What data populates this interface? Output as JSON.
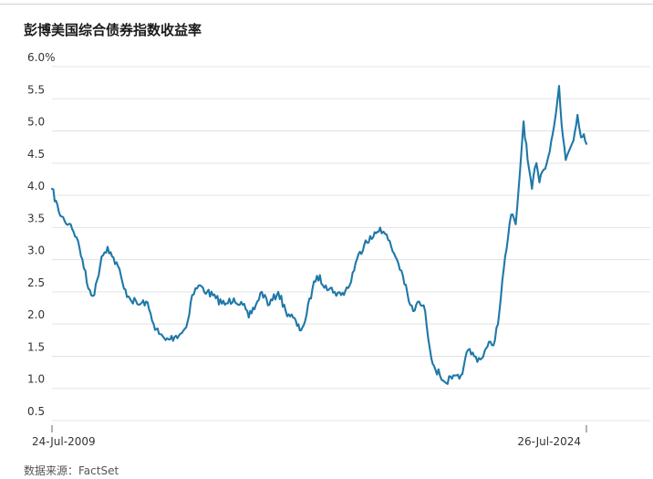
{
  "page": {
    "title": "彭博美国综合债券指数收益率",
    "source": "数据来源：FactSet"
  },
  "colors": {
    "line": "#1f78a8",
    "gridline": "#e3e3e3",
    "axis_text": "#333333"
  },
  "chart_data": {
    "type": "line",
    "title": "彭博美国综合债券指数收益率",
    "xlabel": "",
    "ylabel": "",
    "ylim": [
      0.5,
      6.0
    ],
    "grid": true,
    "y_ticks": [
      "6.0%",
      "5.5",
      "5.0",
      "4.5",
      "4.0",
      "3.5",
      "3.0",
      "2.5",
      "2.0",
      "1.5",
      "1.0",
      "0.5"
    ],
    "x_tick_labels": [
      "24-Jul-2009",
      "26-Jul-2024"
    ],
    "series": [
      {
        "x": [
          "2009-07-24",
          "2009-10-01",
          "2009-12-01",
          "2010-02-01",
          "2010-04-01",
          "2010-06-01",
          "2010-08-01",
          "2010-10-01",
          "2010-12-15",
          "2011-02-15",
          "2011-04-01",
          "2011-06-01",
          "2011-08-01",
          "2011-10-01",
          "2012-01-01",
          "2012-03-15",
          "2012-06-01",
          "2012-07-25",
          "2012-10-01",
          "2013-01-01",
          "2013-03-01",
          "2013-05-01",
          "2013-07-01",
          "2013-09-05",
          "2013-12-01",
          "2014-03-01",
          "2014-06-01",
          "2014-09-01",
          "2014-12-01",
          "2015-02-01",
          "2015-04-15",
          "2015-06-15",
          "2015-09-01",
          "2015-12-01",
          "2016-02-15",
          "2016-05-01",
          "2016-07-08",
          "2016-09-01",
          "2016-11-15",
          "2017-01-01",
          "2017-04-01",
          "2017-07-01",
          "2017-09-05",
          "2017-12-01",
          "2018-02-01",
          "2018-05-15",
          "2018-08-01",
          "2018-10-10",
          "2018-12-01",
          "2019-02-01",
          "2019-04-01",
          "2019-06-01",
          "2019-08-01",
          "2019-09-15",
          "2019-11-15",
          "2020-01-15",
          "2020-03-05",
          "2020-04-15",
          "2020-06-15",
          "2020-08-04",
          "2020-10-15",
          "2020-12-31",
          "2021-02-15",
          "2021-03-31",
          "2021-06-01",
          "2021-08-04",
          "2021-10-15",
          "2021-12-31",
          "2022-02-15",
          "2022-03-31",
          "2022-05-15",
          "2022-06-15",
          "2022-08-01",
          "2022-09-15",
          "2022-10-21",
          "2022-12-01",
          "2023-01-15",
          "2023-03-01",
          "2023-04-01",
          "2023-05-15",
          "2023-07-01",
          "2023-08-15",
          "2023-10-19",
          "2023-11-15",
          "2023-12-27",
          "2024-02-01",
          "2024-03-15",
          "2024-04-25",
          "2024-06-01",
          "2024-06-30",
          "2024-07-26"
        ],
        "y": [
          4.1,
          3.75,
          3.6,
          3.55,
          3.35,
          3.0,
          2.55,
          2.45,
          3.05,
          3.2,
          3.05,
          2.9,
          2.55,
          2.4,
          2.3,
          2.35,
          2.0,
          1.85,
          1.75,
          1.8,
          1.85,
          1.95,
          2.45,
          2.6,
          2.5,
          2.4,
          2.3,
          2.4,
          2.3,
          2.1,
          2.3,
          2.5,
          2.3,
          2.5,
          2.2,
          2.1,
          1.9,
          2.05,
          2.55,
          2.75,
          2.6,
          2.5,
          2.45,
          2.6,
          2.95,
          3.3,
          3.35,
          3.5,
          3.4,
          3.2,
          3.0,
          2.75,
          2.35,
          2.2,
          2.35,
          2.2,
          1.6,
          1.35,
          1.2,
          1.1,
          1.15,
          1.15,
          1.35,
          1.6,
          1.5,
          1.45,
          1.65,
          1.75,
          2.2,
          2.85,
          3.35,
          3.7,
          3.55,
          4.4,
          5.15,
          4.55,
          4.1,
          4.5,
          4.2,
          4.4,
          4.6,
          4.95,
          5.7,
          5.1,
          4.55,
          4.7,
          4.85,
          5.25,
          4.9,
          4.95,
          4.8
        ]
      }
    ]
  }
}
